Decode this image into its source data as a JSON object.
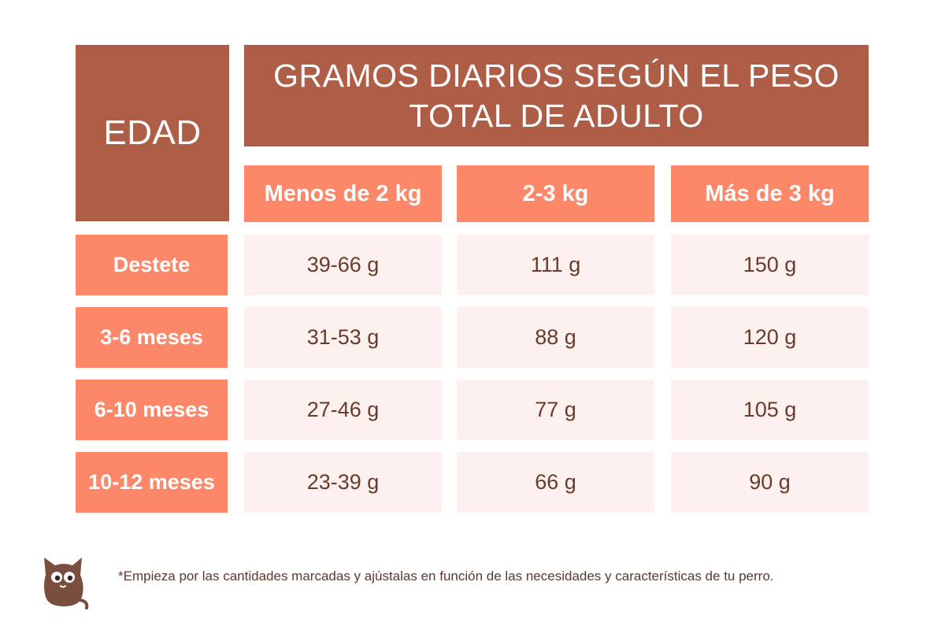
{
  "table": {
    "edad_label": "EDAD",
    "title_line1": "GRAMOS DIARIOS SEGÚN EL PESO",
    "title_line2": "TOTAL DE ADULTO",
    "columns": [
      "Menos de 2 kg",
      "2-3 kg",
      "Más de 3 kg"
    ],
    "rows": [
      {
        "label": "Destete",
        "values": [
          "39-66 g",
          "111 g",
          "150 g"
        ]
      },
      {
        "label": "3-6 meses",
        "values": [
          "31-53 g",
          "88 g",
          "120 g"
        ]
      },
      {
        "label": "6-10 meses",
        "values": [
          "27-46 g",
          "77 g",
          "105 g"
        ]
      },
      {
        "label": "10-12 meses",
        "values": [
          "23-39 g",
          "66 g",
          "90 g"
        ]
      }
    ]
  },
  "footnote": "*Empieza por las cantidades marcadas y ajústalas en función de las necesidades y características de tu perro.",
  "logo_icon": "cat-logo-icon",
  "colors": {
    "dark": "#ae5e46",
    "orange": "#fd8769",
    "pale": "#fdf1ef",
    "text": "#6a3a2b"
  }
}
